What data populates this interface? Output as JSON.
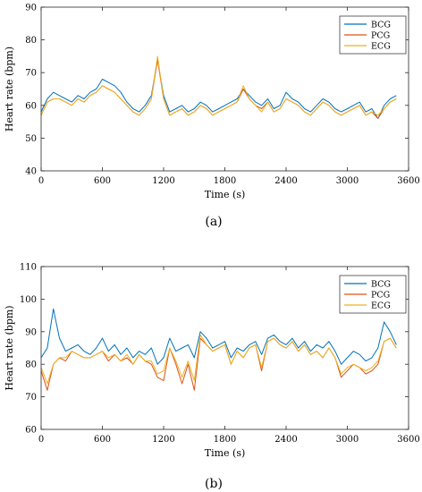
{
  "colors": {
    "BCG": "#0072BD",
    "PCG": "#D95319",
    "ECG": "#EDB120"
  },
  "chart_data": [
    {
      "type": "line",
      "panel_label": "(a)",
      "xlabel": "Time (s)",
      "ylabel": "Heart rate (bpm)",
      "xlim": [
        0,
        3600
      ],
      "ylim": [
        40,
        90
      ],
      "xticks": [
        0,
        600,
        1200,
        1800,
        2400,
        3000,
        3600
      ],
      "yticks": [
        40,
        50,
        60,
        70,
        80,
        90
      ],
      "legend": {
        "position": "top-right",
        "entries": [
          "BCG",
          "PCG",
          "ECG"
        ]
      },
      "series": [
        {
          "name": "BCG",
          "x": [
            0,
            60,
            120,
            180,
            240,
            300,
            360,
            420,
            480,
            540,
            600,
            660,
            720,
            780,
            840,
            900,
            960,
            1020,
            1080,
            1140,
            1200,
            1260,
            1320,
            1380,
            1440,
            1500,
            1560,
            1620,
            1680,
            1740,
            1800,
            1860,
            1920,
            1980,
            2040,
            2100,
            2160,
            2220,
            2280,
            2340,
            2400,
            2460,
            2520,
            2580,
            2640,
            2700,
            2760,
            2820,
            2880,
            2940,
            3000,
            3060,
            3120,
            3180,
            3240,
            3300,
            3360,
            3420,
            3480
          ],
          "y": [
            58,
            62,
            64,
            63,
            62,
            61,
            63,
            62,
            64,
            65,
            68,
            67,
            66,
            64,
            61,
            59,
            58,
            60,
            63,
            74,
            63,
            58,
            59,
            60,
            58,
            59,
            61,
            60,
            58,
            59,
            60,
            61,
            62,
            65,
            63,
            61,
            60,
            62,
            59,
            60,
            64,
            62,
            61,
            59,
            58,
            60,
            62,
            61,
            59,
            58,
            59,
            60,
            61,
            58,
            59,
            56,
            60,
            62,
            63
          ]
        },
        {
          "name": "PCG",
          "x": [
            0,
            60,
            120,
            180,
            240,
            300,
            360,
            420,
            480,
            540,
            600,
            660,
            720,
            780,
            840,
            900,
            960,
            1020,
            1080,
            1140,
            1200,
            1260,
            1320,
            1380,
            1440,
            1500,
            1560,
            1620,
            1680,
            1740,
            1800,
            1860,
            1920,
            1980,
            2040,
            2100,
            2160,
            2220,
            2280,
            2340,
            2400,
            2460,
            2520,
            2580,
            2640,
            2700,
            2760,
            2820,
            2880,
            2940,
            3000,
            3060,
            3120,
            3180,
            3240,
            3300,
            3360,
            3420,
            3480
          ],
          "y": [
            57,
            61,
            62,
            62,
            61,
            60,
            62,
            61,
            63,
            64,
            66,
            65,
            64,
            62,
            60,
            58,
            57,
            59,
            62,
            74,
            62,
            57,
            58,
            59,
            57,
            58,
            60,
            59,
            57,
            58,
            59,
            60,
            61,
            65,
            62,
            60,
            59,
            61,
            58,
            59,
            62,
            61,
            60,
            58,
            57,
            59,
            61,
            60,
            58,
            57,
            58,
            59,
            60,
            57,
            58,
            56,
            59,
            61,
            62
          ]
        },
        {
          "name": "ECG",
          "x": [
            0,
            60,
            120,
            180,
            240,
            300,
            360,
            420,
            480,
            540,
            600,
            660,
            720,
            780,
            840,
            900,
            960,
            1020,
            1080,
            1140,
            1200,
            1260,
            1320,
            1380,
            1440,
            1500,
            1560,
            1620,
            1680,
            1740,
            1800,
            1860,
            1920,
            1980,
            2040,
            2100,
            2160,
            2220,
            2280,
            2340,
            2400,
            2460,
            2520,
            2580,
            2640,
            2700,
            2760,
            2820,
            2880,
            2940,
            3000,
            3060,
            3120,
            3180,
            3240,
            3300,
            3360,
            3420,
            3480
          ],
          "y": [
            57,
            61,
            62,
            62,
            61,
            60,
            62,
            61,
            63,
            64,
            66,
            65,
            64,
            62,
            60,
            58,
            57,
            59,
            62,
            75,
            62,
            57,
            58,
            59,
            57,
            58,
            60,
            59,
            57,
            58,
            59,
            60,
            61,
            66,
            62,
            60,
            58,
            61,
            58,
            59,
            62,
            61,
            60,
            58,
            57,
            59,
            61,
            60,
            58,
            57,
            58,
            59,
            60,
            57,
            58,
            57,
            59,
            61,
            62
          ]
        }
      ]
    },
    {
      "type": "line",
      "panel_label": "(b)",
      "xlabel": "Time (s)",
      "ylabel": "Heart rate (bpm)",
      "xlim": [
        0,
        3600
      ],
      "ylim": [
        60,
        110
      ],
      "xticks": [
        0,
        600,
        1200,
        1800,
        2400,
        3000,
        3600
      ],
      "yticks": [
        60,
        70,
        80,
        90,
        100,
        110
      ],
      "legend": {
        "position": "top-right",
        "entries": [
          "BCG",
          "PCG",
          "ECG"
        ]
      },
      "series": [
        {
          "name": "BCG",
          "x": [
            0,
            60,
            120,
            180,
            240,
            300,
            360,
            420,
            480,
            540,
            600,
            660,
            720,
            780,
            840,
            900,
            960,
            1020,
            1080,
            1140,
            1200,
            1260,
            1320,
            1380,
            1440,
            1500,
            1560,
            1620,
            1680,
            1740,
            1800,
            1860,
            1920,
            1980,
            2040,
            2100,
            2160,
            2220,
            2280,
            2340,
            2400,
            2460,
            2520,
            2580,
            2640,
            2700,
            2760,
            2820,
            2880,
            2940,
            3000,
            3060,
            3120,
            3180,
            3240,
            3300,
            3360,
            3420,
            3480
          ],
          "y": [
            82,
            85,
            97,
            88,
            84,
            85,
            86,
            84,
            83,
            85,
            88,
            84,
            86,
            83,
            85,
            82,
            84,
            83,
            85,
            80,
            82,
            88,
            84,
            85,
            86,
            82,
            90,
            88,
            85,
            86,
            87,
            82,
            85,
            84,
            86,
            87,
            83,
            88,
            89,
            87,
            86,
            88,
            85,
            87,
            84,
            86,
            85,
            87,
            84,
            80,
            82,
            84,
            83,
            81,
            82,
            85,
            93,
            90,
            86
          ]
        },
        {
          "name": "PCG",
          "x": [
            0,
            60,
            120,
            180,
            240,
            300,
            360,
            420,
            480,
            540,
            600,
            660,
            720,
            780,
            840,
            900,
            960,
            1020,
            1080,
            1140,
            1200,
            1260,
            1320,
            1380,
            1440,
            1500,
            1560,
            1620,
            1680,
            1740,
            1800,
            1860,
            1920,
            1980,
            2040,
            2100,
            2160,
            2220,
            2280,
            2340,
            2400,
            2460,
            2520,
            2580,
            2640,
            2700,
            2760,
            2820,
            2880,
            2940,
            3000,
            3060,
            3120,
            3180,
            3240,
            3300,
            3360,
            3420,
            3480
          ],
          "y": [
            78,
            72,
            80,
            82,
            81,
            84,
            83,
            82,
            82,
            83,
            84,
            81,
            83,
            81,
            82,
            80,
            83,
            81,
            80,
            76,
            75,
            85,
            80,
            74,
            80,
            72,
            88,
            86,
            84,
            85,
            86,
            80,
            84,
            82,
            85,
            86,
            78,
            87,
            88,
            86,
            85,
            87,
            84,
            86,
            83,
            84,
            82,
            85,
            82,
            76,
            78,
            80,
            79,
            77,
            78,
            80,
            87,
            88,
            85
          ]
        },
        {
          "name": "ECG",
          "x": [
            0,
            60,
            120,
            180,
            240,
            300,
            360,
            420,
            480,
            540,
            600,
            660,
            720,
            780,
            840,
            900,
            960,
            1020,
            1080,
            1140,
            1200,
            1260,
            1320,
            1380,
            1440,
            1500,
            1560,
            1620,
            1680,
            1740,
            1800,
            1860,
            1920,
            1980,
            2040,
            2100,
            2160,
            2220,
            2280,
            2340,
            2400,
            2460,
            2520,
            2580,
            2640,
            2700,
            2760,
            2820,
            2880,
            2940,
            3000,
            3060,
            3120,
            3180,
            3240,
            3300,
            3360,
            3420,
            3480
          ],
          "y": [
            79,
            74,
            80,
            82,
            82,
            84,
            83,
            82,
            82,
            83,
            84,
            82,
            83,
            81,
            83,
            80,
            83,
            81,
            81,
            77,
            78,
            85,
            81,
            76,
            81,
            75,
            89,
            86,
            84,
            85,
            86,
            80,
            84,
            82,
            85,
            86,
            79,
            87,
            88,
            86,
            85,
            87,
            84,
            86,
            83,
            84,
            82,
            85,
            82,
            77,
            79,
            80,
            79,
            78,
            79,
            81,
            87,
            88,
            85
          ]
        }
      ]
    }
  ]
}
